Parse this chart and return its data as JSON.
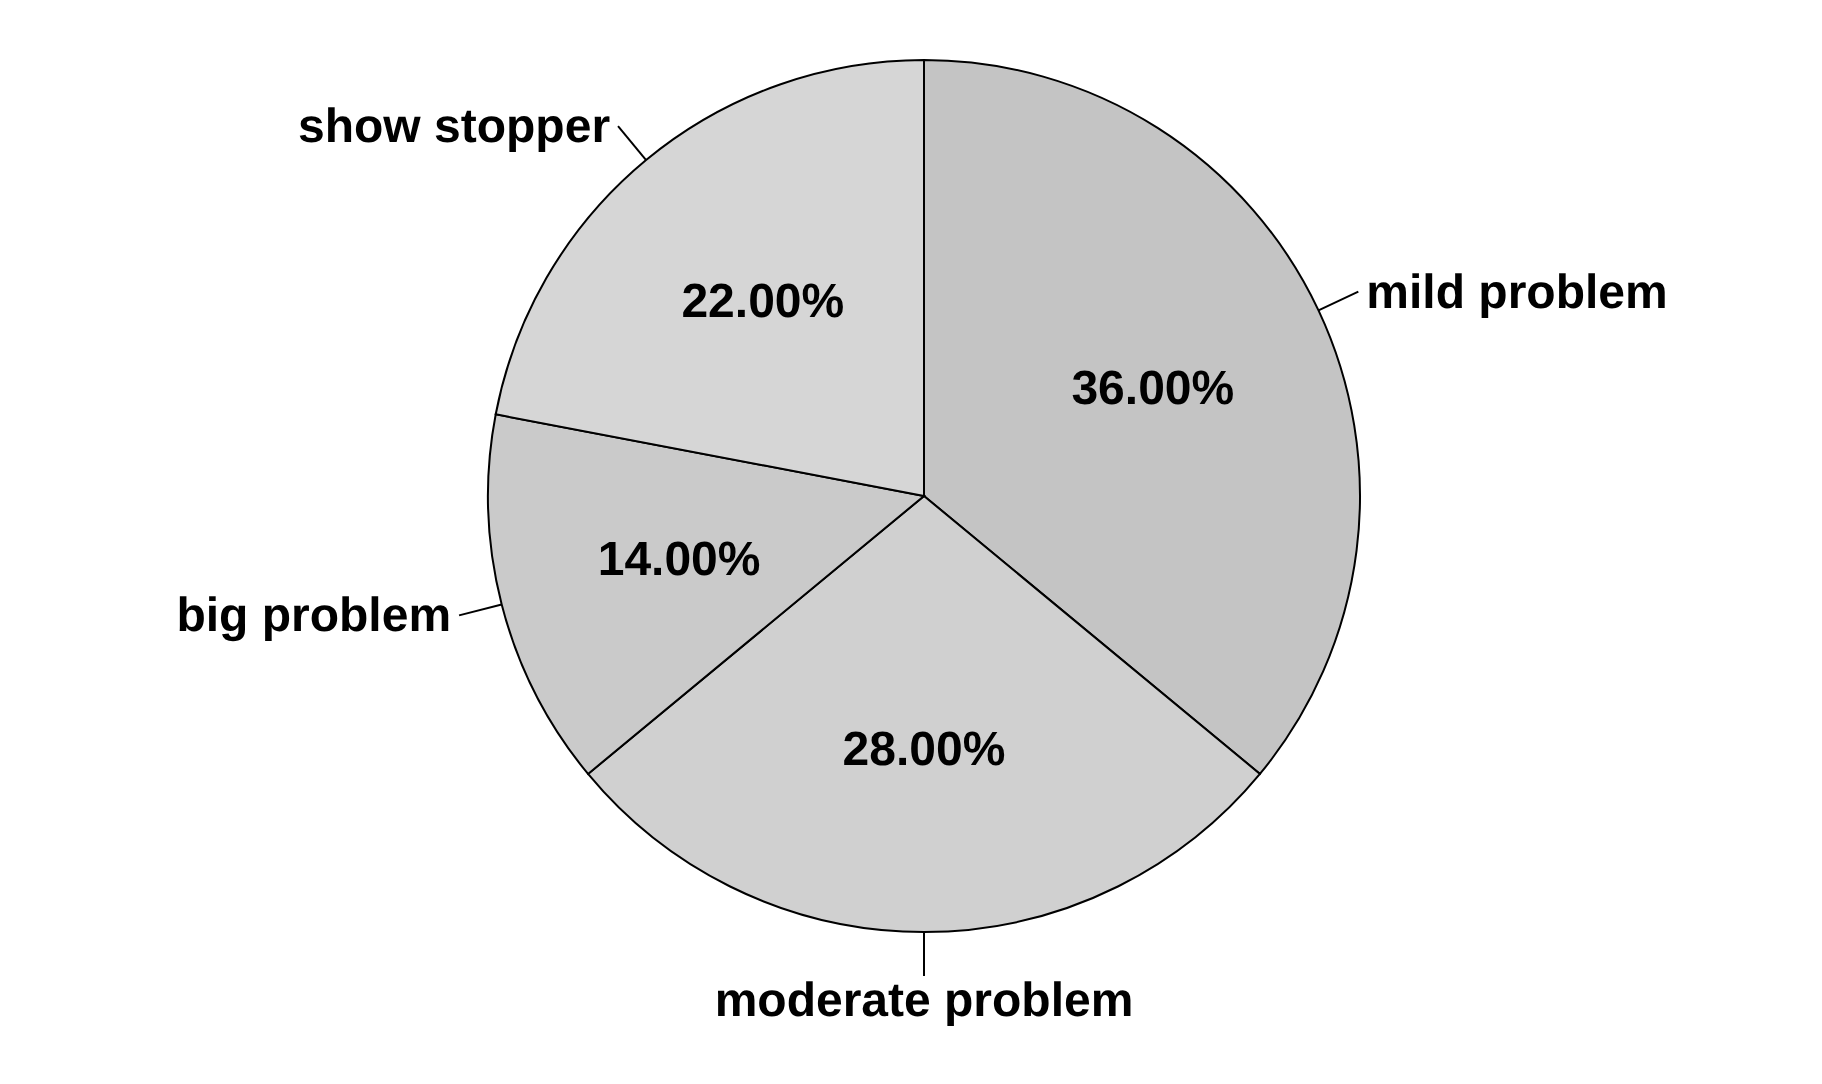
{
  "chart_data": {
    "type": "pie",
    "categories": [
      "mild problem",
      "moderate problem",
      "big problem",
      "show stopper"
    ],
    "values": [
      36,
      28,
      14,
      22
    ],
    "colors": [
      "#c4c4c4",
      "#d0d0d0",
      "#cacaca",
      "#d6d6d6"
    ],
    "value_labels": [
      "36.00%",
      "28.00%",
      "14.00%",
      "22.00%"
    ]
  }
}
